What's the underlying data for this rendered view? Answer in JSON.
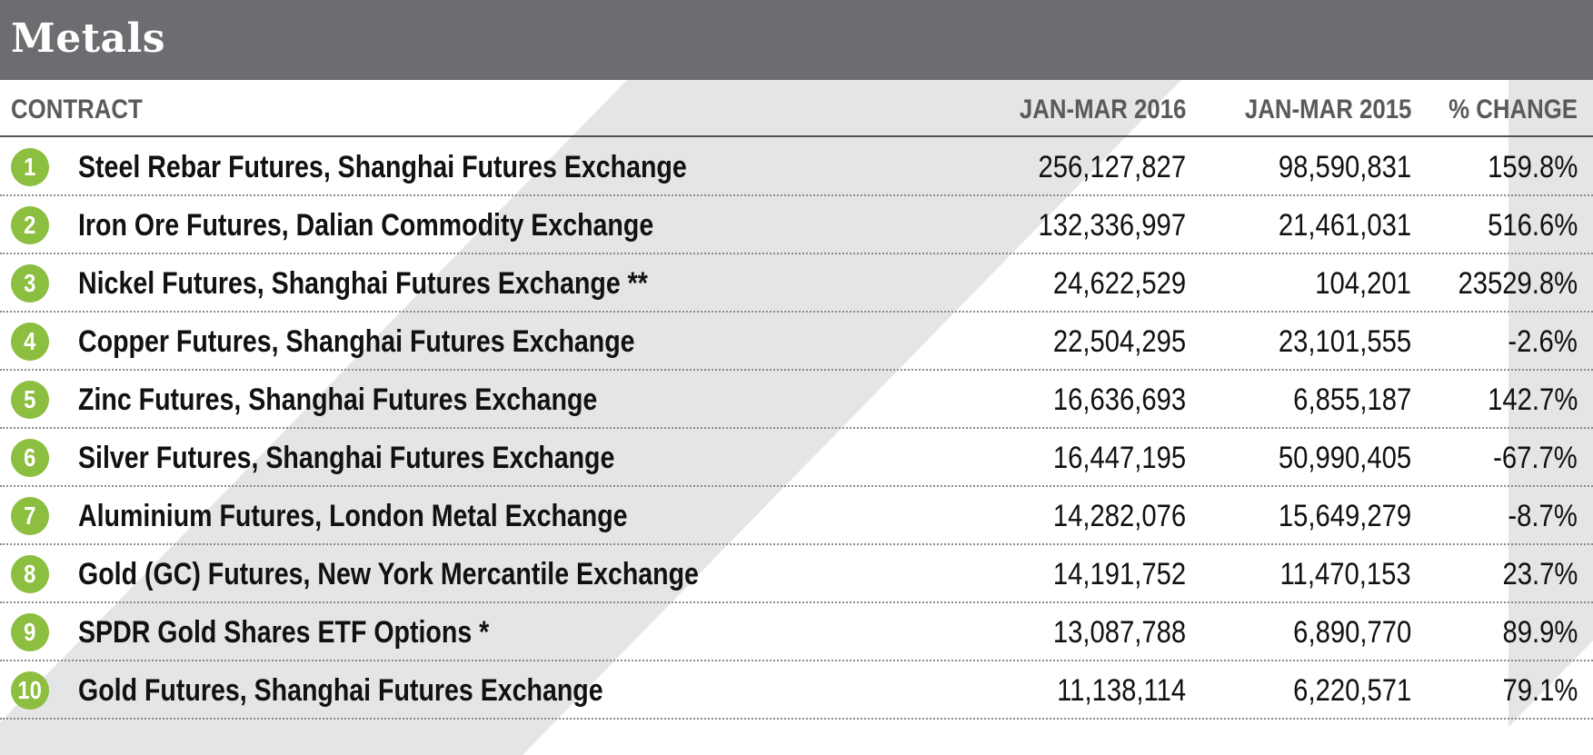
{
  "title": "Metals",
  "chart_data": {
    "type": "table",
    "columns": [
      "CONTRACT",
      "JAN-MAR 2016",
      "JAN-MAR 2015",
      "% CHANGE"
    ],
    "rows": [
      {
        "rank": "1",
        "contract": "Steel Rebar Futures, Shanghai Futures Exchange",
        "v2016": "256,127,827",
        "v2015": "98,590,831",
        "change": "159.8%"
      },
      {
        "rank": "2",
        "contract": "Iron Ore Futures, Dalian Commodity Exchange",
        "v2016": "132,336,997",
        "v2015": "21,461,031",
        "change": "516.6%"
      },
      {
        "rank": "3",
        "contract": "Nickel Futures, Shanghai Futures Exchange **",
        "v2016": "24,622,529",
        "v2015": "104,201",
        "change": "23529.8%"
      },
      {
        "rank": "4",
        "contract": "Copper Futures, Shanghai Futures Exchange",
        "v2016": "22,504,295",
        "v2015": "23,101,555",
        "change": "-2.6%"
      },
      {
        "rank": "5",
        "contract": "Zinc Futures, Shanghai Futures Exchange",
        "v2016": "16,636,693",
        "v2015": "6,855,187",
        "change": "142.7%"
      },
      {
        "rank": "6",
        "contract": "Silver Futures, Shanghai Futures Exchange",
        "v2016": "16,447,195",
        "v2015": "50,990,405",
        "change": "-67.7%"
      },
      {
        "rank": "7",
        "contract": "Aluminium Futures, London Metal Exchange",
        "v2016": "14,282,076",
        "v2015": "15,649,279",
        "change": "-8.7%"
      },
      {
        "rank": "8",
        "contract": "Gold (GC) Futures, New York Mercantile Exchange",
        "v2016": "14,191,752",
        "v2015": "11,470,153",
        "change": "23.7%"
      },
      {
        "rank": "9",
        "contract": "SPDR Gold Shares ETF Options *",
        "v2016": "13,087,788",
        "v2015": "6,890,770",
        "change": "89.9%"
      },
      {
        "rank": "10",
        "contract": "Gold Futures, Shanghai Futures Exchange",
        "v2016": "11,138,114",
        "v2015": "6,220,571",
        "change": "79.1%"
      }
    ]
  },
  "colors": {
    "header_bg": "#6c6d71",
    "rank_badge": "#8cbe3f",
    "column_header_text": "#5a5a5c",
    "decorative_stripe": "#e4e5e6"
  }
}
